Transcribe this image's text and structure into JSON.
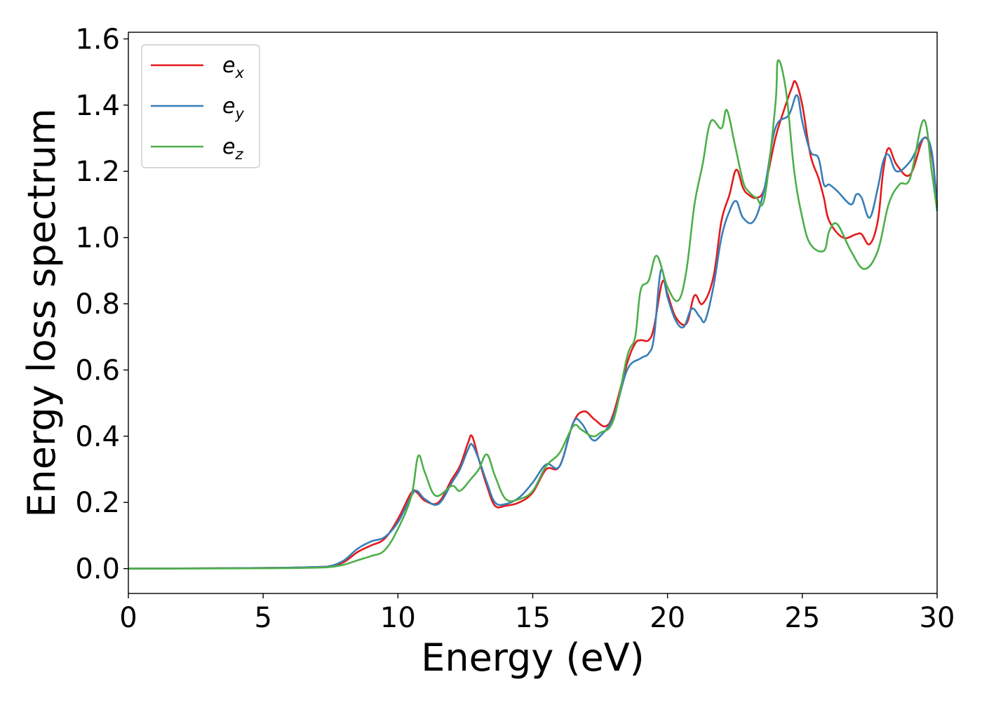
{
  "chart_data": {
    "type": "line",
    "title": "",
    "xlabel": "Energy (eV)",
    "ylabel": "Energy loss spectrum",
    "xlim": [
      0,
      30
    ],
    "ylim": [
      -0.075,
      1.62
    ],
    "xticks": [
      "0",
      "5",
      "10",
      "15",
      "20",
      "25",
      "30"
    ],
    "yticks": [
      "0.0",
      "0.2",
      "0.4",
      "0.6",
      "0.8",
      "1.0",
      "1.2",
      "1.4",
      "1.6"
    ],
    "grid": false,
    "legend_position": "top-left",
    "series": [
      {
        "name": "e",
        "sub": "x",
        "color": "#e41a1c",
        "points": [
          [
            0,
            0
          ],
          [
            5,
            0.002
          ],
          [
            7,
            0.005
          ],
          [
            7.5,
            0.008
          ],
          [
            8,
            0.02
          ],
          [
            8.5,
            0.05
          ],
          [
            9,
            0.07
          ],
          [
            9.5,
            0.09
          ],
          [
            10,
            0.15
          ],
          [
            10.5,
            0.23
          ],
          [
            10.7,
            0.23
          ],
          [
            11,
            0.205
          ],
          [
            11.5,
            0.2
          ],
          [
            12,
            0.27
          ],
          [
            12.3,
            0.31
          ],
          [
            12.6,
            0.38
          ],
          [
            12.75,
            0.4
          ],
          [
            13,
            0.33
          ],
          [
            13.3,
            0.25
          ],
          [
            13.6,
            0.19
          ],
          [
            14,
            0.19
          ],
          [
            14.5,
            0.2
          ],
          [
            15,
            0.23
          ],
          [
            15.5,
            0.3
          ],
          [
            16,
            0.31
          ],
          [
            16.5,
            0.44
          ],
          [
            16.9,
            0.475
          ],
          [
            17.3,
            0.45
          ],
          [
            17.7,
            0.43
          ],
          [
            18,
            0.47
          ],
          [
            18.5,
            0.62
          ],
          [
            18.8,
            0.68
          ],
          [
            19,
            0.69
          ],
          [
            19.3,
            0.69
          ],
          [
            19.5,
            0.73
          ],
          [
            19.8,
            0.865
          ],
          [
            20,
            0.83
          ],
          [
            20.3,
            0.76
          ],
          [
            20.7,
            0.74
          ],
          [
            21,
            0.825
          ],
          [
            21.3,
            0.8
          ],
          [
            21.7,
            0.88
          ],
          [
            22,
            1.05
          ],
          [
            22.3,
            1.13
          ],
          [
            22.55,
            1.205
          ],
          [
            22.8,
            1.15
          ],
          [
            23,
            1.13
          ],
          [
            23.3,
            1.12
          ],
          [
            23.6,
            1.15
          ],
          [
            24,
            1.3
          ],
          [
            24.3,
            1.38
          ],
          [
            24.6,
            1.45
          ],
          [
            24.75,
            1.47
          ],
          [
            25,
            1.4
          ],
          [
            25.3,
            1.25
          ],
          [
            25.6,
            1.18
          ],
          [
            25.8,
            1.12
          ],
          [
            26,
            1.05
          ],
          [
            26.5,
            1.0
          ],
          [
            27,
            1.01
          ],
          [
            27.2,
            1.01
          ],
          [
            27.5,
            0.98
          ],
          [
            27.8,
            1.05
          ],
          [
            28,
            1.2
          ],
          [
            28.2,
            1.27
          ],
          [
            28.5,
            1.22
          ],
          [
            29,
            1.19
          ],
          [
            29.5,
            1.3
          ],
          [
            29.8,
            1.25
          ],
          [
            30,
            1.1
          ]
        ]
      },
      {
        "name": "e",
        "sub": "y",
        "color": "#377eb8",
        "points": [
          [
            0,
            0
          ],
          [
            5,
            0.002
          ],
          [
            7,
            0.005
          ],
          [
            7.5,
            0.008
          ],
          [
            8,
            0.025
          ],
          [
            8.5,
            0.06
          ],
          [
            9,
            0.082
          ],
          [
            9.5,
            0.095
          ],
          [
            10,
            0.14
          ],
          [
            10.5,
            0.22
          ],
          [
            10.7,
            0.235
          ],
          [
            11,
            0.21
          ],
          [
            11.5,
            0.195
          ],
          [
            12,
            0.26
          ],
          [
            12.3,
            0.3
          ],
          [
            12.6,
            0.36
          ],
          [
            12.75,
            0.375
          ],
          [
            13,
            0.33
          ],
          [
            13.3,
            0.26
          ],
          [
            13.6,
            0.2
          ],
          [
            14,
            0.195
          ],
          [
            14.5,
            0.215
          ],
          [
            15,
            0.26
          ],
          [
            15.5,
            0.315
          ],
          [
            16,
            0.31
          ],
          [
            16.5,
            0.44
          ],
          [
            16.8,
            0.44
          ],
          [
            17.2,
            0.39
          ],
          [
            17.5,
            0.4
          ],
          [
            18,
            0.46
          ],
          [
            18.5,
            0.6
          ],
          [
            19,
            0.635
          ],
          [
            19.3,
            0.65
          ],
          [
            19.5,
            0.7
          ],
          [
            19.75,
            0.9
          ],
          [
            20,
            0.82
          ],
          [
            20.3,
            0.75
          ],
          [
            20.6,
            0.73
          ],
          [
            20.9,
            0.785
          ],
          [
            21.2,
            0.76
          ],
          [
            21.4,
            0.75
          ],
          [
            21.7,
            0.85
          ],
          [
            22,
            1.0
          ],
          [
            22.3,
            1.08
          ],
          [
            22.55,
            1.11
          ],
          [
            22.8,
            1.06
          ],
          [
            23.2,
            1.05
          ],
          [
            23.6,
            1.15
          ],
          [
            24,
            1.33
          ],
          [
            24.5,
            1.37
          ],
          [
            24.8,
            1.43
          ],
          [
            25,
            1.35
          ],
          [
            25.3,
            1.26
          ],
          [
            25.6,
            1.24
          ],
          [
            25.8,
            1.16
          ],
          [
            26,
            1.16
          ],
          [
            26.3,
            1.14
          ],
          [
            26.8,
            1.1
          ],
          [
            27,
            1.13
          ],
          [
            27.2,
            1.12
          ],
          [
            27.5,
            1.06
          ],
          [
            27.8,
            1.15
          ],
          [
            28,
            1.23
          ],
          [
            28.2,
            1.25
          ],
          [
            28.5,
            1.2
          ],
          [
            29,
            1.23
          ],
          [
            29.5,
            1.3
          ],
          [
            29.8,
            1.26
          ],
          [
            30,
            1.09
          ]
        ]
      },
      {
        "name": "e",
        "sub": "z",
        "color": "#4daf4a",
        "points": [
          [
            0,
            0
          ],
          [
            5,
            0.001
          ],
          [
            7,
            0.003
          ],
          [
            7.5,
            0.005
          ],
          [
            8,
            0.012
          ],
          [
            8.5,
            0.025
          ],
          [
            9,
            0.038
          ],
          [
            9.5,
            0.055
          ],
          [
            10,
            0.12
          ],
          [
            10.5,
            0.22
          ],
          [
            10.75,
            0.34
          ],
          [
            11,
            0.29
          ],
          [
            11.4,
            0.22
          ],
          [
            12,
            0.25
          ],
          [
            12.3,
            0.235
          ],
          [
            12.7,
            0.27
          ],
          [
            13,
            0.3
          ],
          [
            13.3,
            0.345
          ],
          [
            13.6,
            0.28
          ],
          [
            14,
            0.21
          ],
          [
            14.5,
            0.21
          ],
          [
            15,
            0.235
          ],
          [
            15.5,
            0.31
          ],
          [
            16,
            0.35
          ],
          [
            16.5,
            0.43
          ],
          [
            16.8,
            0.42
          ],
          [
            17.2,
            0.4
          ],
          [
            17.5,
            0.41
          ],
          [
            18,
            0.45
          ],
          [
            18.5,
            0.64
          ],
          [
            18.8,
            0.7
          ],
          [
            19,
            0.84
          ],
          [
            19.3,
            0.87
          ],
          [
            19.6,
            0.945
          ],
          [
            20,
            0.85
          ],
          [
            20.4,
            0.81
          ],
          [
            20.7,
            0.9
          ],
          [
            21,
            1.1
          ],
          [
            21.3,
            1.22
          ],
          [
            21.6,
            1.35
          ],
          [
            22,
            1.33
          ],
          [
            22.2,
            1.385
          ],
          [
            22.5,
            1.28
          ],
          [
            22.8,
            1.17
          ],
          [
            23,
            1.14
          ],
          [
            23.3,
            1.12
          ],
          [
            23.6,
            1.12
          ],
          [
            24,
            1.4
          ],
          [
            24.1,
            1.535
          ],
          [
            24.4,
            1.44
          ],
          [
            24.7,
            1.2
          ],
          [
            25,
            1.06
          ],
          [
            25.3,
            0.98
          ],
          [
            25.8,
            0.96
          ],
          [
            26,
            1.02
          ],
          [
            26.3,
            1.04
          ],
          [
            26.8,
            0.96
          ],
          [
            27.3,
            0.905
          ],
          [
            27.8,
            0.96
          ],
          [
            28.2,
            1.1
          ],
          [
            28.6,
            1.16
          ],
          [
            29,
            1.18
          ],
          [
            29.5,
            1.355
          ],
          [
            29.8,
            1.2
          ],
          [
            30,
            1.08
          ]
        ]
      }
    ]
  }
}
